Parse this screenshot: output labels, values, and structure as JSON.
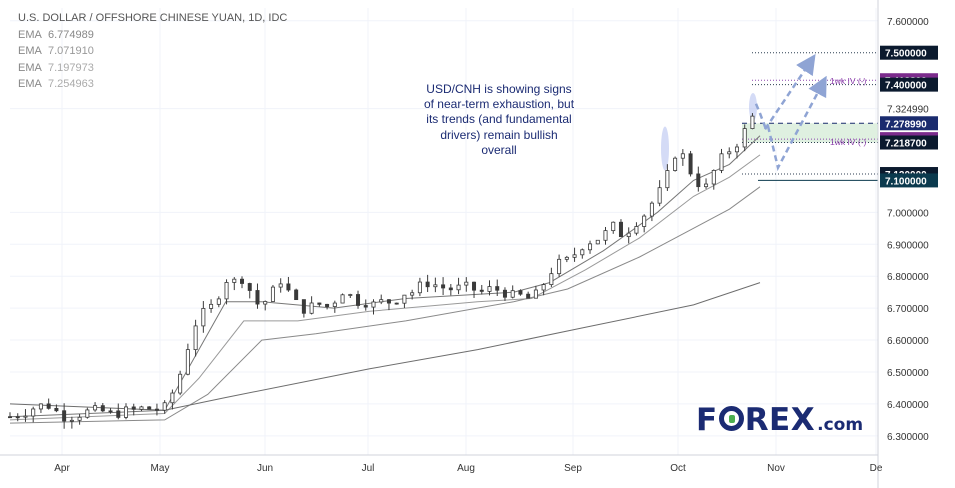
{
  "chart_data": {
    "type": "candlestick",
    "title": "U.S. DOLLAR / OFFSHORE CHINESE YUAN, 1D, IDC",
    "indicators": [
      {
        "name": "EMA",
        "value": "6.774989"
      },
      {
        "name": "EMA",
        "value": "7.071910"
      },
      {
        "name": "EMA",
        "value": "7.197973"
      },
      {
        "name": "EMA",
        "value": "7.254963"
      }
    ],
    "ylim": [
      6.24,
      7.64
    ],
    "y_ticks": [
      "7.600000",
      "7.324990",
      "7.000000",
      "6.900000",
      "6.800000",
      "6.700000",
      "6.600000",
      "6.500000",
      "6.400000",
      "6.300000"
    ],
    "x_ticks": [
      "Apr",
      "May",
      "Jun",
      "Jul",
      "Aug",
      "Sep",
      "Oct",
      "Nov",
      "De"
    ],
    "price_path": [
      [
        0,
        6.36
      ],
      [
        7,
        6.37
      ],
      [
        14,
        6.39
      ],
      [
        20,
        6.4
      ],
      [
        25,
        6.38
      ],
      [
        30,
        6.36
      ],
      [
        35,
        6.36
      ],
      [
        40,
        6.37
      ],
      [
        45,
        6.38
      ],
      [
        50,
        6.38
      ],
      [
        55,
        6.37
      ],
      [
        60,
        6.37
      ],
      [
        65,
        6.38
      ],
      [
        70,
        6.38
      ],
      [
        75,
        6.39
      ],
      [
        80,
        6.38
      ],
      [
        86,
        6.39
      ],
      [
        90,
        6.43
      ],
      [
        95,
        6.5
      ],
      [
        100,
        6.6
      ],
      [
        105,
        6.68
      ],
      [
        110,
        6.69
      ],
      [
        115,
        6.73
      ],
      [
        120,
        6.79
      ],
      [
        124,
        6.78
      ],
      [
        128,
        6.8
      ],
      [
        133,
        6.76
      ],
      [
        136,
        6.73
      ],
      [
        139,
        6.7
      ],
      [
        143,
        6.73
      ],
      [
        147,
        6.76
      ],
      [
        151,
        6.79
      ],
      [
        156,
        6.74
      ],
      [
        160,
        6.71
      ],
      [
        165,
        6.69
      ],
      [
        170,
        6.72
      ],
      [
        175,
        6.7
      ],
      [
        180,
        6.72
      ],
      [
        186,
        6.76
      ],
      [
        189,
        6.74
      ],
      [
        193,
        6.72
      ],
      [
        197,
        6.72
      ],
      [
        201,
        6.71
      ],
      [
        206,
        6.72
      ],
      [
        211,
        6.72
      ],
      [
        216,
        6.73
      ],
      [
        220,
        6.75
      ],
      [
        224,
        6.75
      ],
      [
        228,
        6.77
      ],
      [
        233,
        6.78
      ],
      [
        238,
        6.77
      ],
      [
        243,
        6.76
      ],
      [
        248,
        6.76
      ],
      [
        252,
        6.77
      ],
      [
        257,
        6.76
      ],
      [
        262,
        6.75
      ],
      [
        266,
        6.76
      ],
      [
        270,
        6.76
      ],
      [
        274,
        6.75
      ],
      [
        279,
        6.74
      ],
      [
        283,
        6.74
      ],
      [
        288,
        6.73
      ],
      [
        292,
        6.74
      ],
      [
        296,
        6.77
      ],
      [
        300,
        6.81
      ],
      [
        305,
        6.84
      ],
      [
        310,
        6.85
      ],
      [
        314,
        6.87
      ],
      [
        319,
        6.9
      ],
      [
        323,
        6.91
      ],
      [
        328,
        6.92
      ],
      [
        332,
        6.94
      ],
      [
        336,
        6.96
      ],
      [
        340,
        6.93
      ],
      [
        345,
        6.95
      ],
      [
        350,
        6.98
      ],
      [
        354,
        7.0
      ],
      [
        358,
        7.04
      ],
      [
        363,
        7.08
      ],
      [
        367,
        7.14
      ],
      [
        371,
        7.2
      ],
      [
        375,
        7.17
      ],
      [
        378,
        7.13
      ],
      [
        382,
        7.1
      ],
      [
        385,
        7.06
      ],
      [
        389,
        7.1
      ],
      [
        393,
        7.15
      ],
      [
        397,
        7.18
      ],
      [
        401,
        7.2
      ],
      [
        405,
        7.22
      ],
      [
        409,
        7.26
      ],
      [
        413,
        7.3
      ],
      [
        417,
        7.29
      ]
    ],
    "ema_1": [
      [
        0,
        6.36
      ],
      [
        86,
        6.38
      ],
      [
        100,
        6.52
      ],
      [
        120,
        6.72
      ],
      [
        140,
        6.72
      ],
      [
        180,
        6.7
      ],
      [
        220,
        6.73
      ],
      [
        280,
        6.75
      ],
      [
        300,
        6.78
      ],
      [
        330,
        6.88
      ],
      [
        360,
        7.0
      ],
      [
        380,
        7.1
      ],
      [
        400,
        7.15
      ],
      [
        417,
        7.24
      ]
    ],
    "ema_2": [
      [
        0,
        6.35
      ],
      [
        86,
        6.37
      ],
      [
        105,
        6.48
      ],
      [
        130,
        6.66
      ],
      [
        160,
        6.66
      ],
      [
        200,
        6.69
      ],
      [
        260,
        6.72
      ],
      [
        290,
        6.73
      ],
      [
        320,
        6.82
      ],
      [
        350,
        6.92
      ],
      [
        380,
        7.05
      ],
      [
        400,
        7.11
      ],
      [
        417,
        7.18
      ]
    ],
    "ema_3": [
      [
        0,
        6.34
      ],
      [
        86,
        6.35
      ],
      [
        110,
        6.43
      ],
      [
        140,
        6.6
      ],
      [
        170,
        6.62
      ],
      [
        220,
        6.66
      ],
      [
        280,
        6.72
      ],
      [
        310,
        6.76
      ],
      [
        350,
        6.86
      ],
      [
        380,
        6.95
      ],
      [
        400,
        7.01
      ],
      [
        417,
        7.08
      ]
    ],
    "ema_4": [
      [
        0,
        6.4
      ],
      [
        86,
        6.38
      ],
      [
        120,
        6.42
      ],
      [
        200,
        6.51
      ],
      [
        260,
        6.57
      ],
      [
        320,
        6.64
      ],
      [
        380,
        6.71
      ],
      [
        417,
        6.78
      ]
    ],
    "levels": [
      {
        "label": "7.500000",
        "value": 7.5,
        "bg": "#0b1a2e",
        "style": "dotted",
        "color": "#2c3e50"
      },
      {
        "label": "7.413800",
        "value": 7.4138,
        "bg": "#7b2b8c",
        "style": "dotted",
        "color": "#8e44ad"
      },
      {
        "label": "7.400000",
        "value": 7.4,
        "bg": "#0b1a2e",
        "style": "dotted",
        "color": "#2c3e50"
      },
      {
        "label": "7.278990",
        "value": 7.27899,
        "bg": "#1a2b6e",
        "style": "dashed",
        "color": "#1a2b6e"
      },
      {
        "label": "7.229300",
        "value": 7.2293,
        "bg": "#7b2b8c",
        "style": "dotted",
        "color": "#8e44ad"
      },
      {
        "label": "7.218700",
        "value": 7.2187,
        "bg": "#0b1a2e",
        "style": "dotted",
        "color": "#2c3e50"
      },
      {
        "label": "7.120000",
        "value": 7.12,
        "bg": "#0b1a2e",
        "style": "dotted",
        "color": "#2c3e50"
      },
      {
        "label": "7.100000",
        "value": 7.1,
        "bg": "#0b3a4e",
        "style": "solid",
        "color": "#0b3a4e"
      }
    ],
    "iv_labels": [
      "1wk IV (-)",
      "1wk IV (-)"
    ],
    "arrow_color": "#8fa4d4",
    "zone_color": "#dff0e0",
    "highlight_color": "#b7c3f0"
  },
  "annotation": {
    "lines": [
      "USD/CNH is showing signs",
      "of near-term exhaustion, but",
      "its trends (and fundamental",
      "drivers) remain bullish",
      "overall"
    ]
  },
  "logo": {
    "main_before": "F",
    "main_after": "REX",
    "dotcom": ".com"
  }
}
